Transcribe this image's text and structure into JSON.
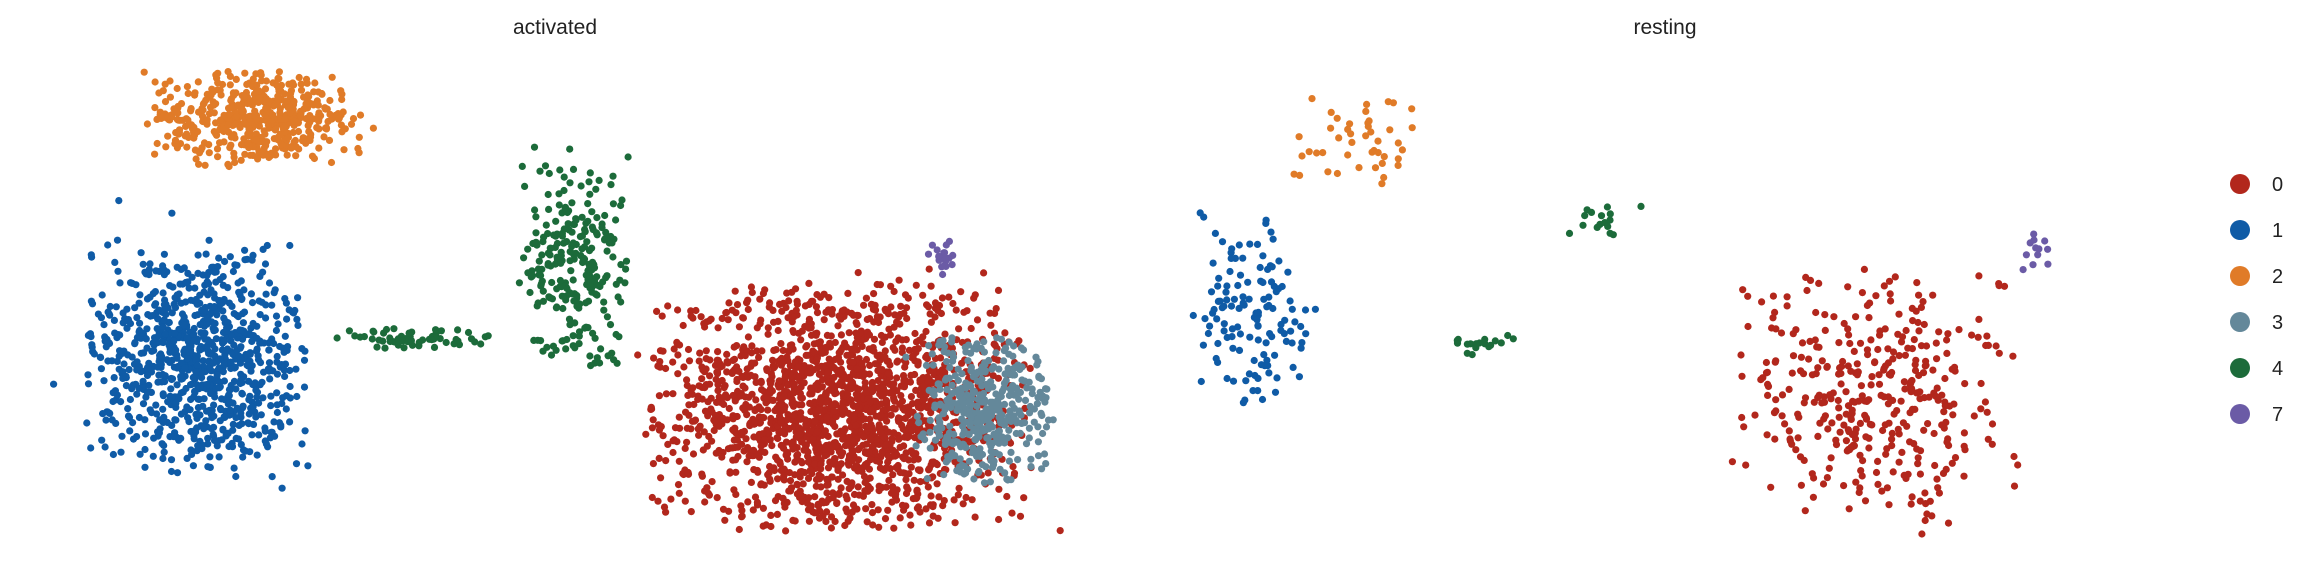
{
  "chart_data": {
    "type": "scatter",
    "title": "",
    "xlabel": "",
    "ylabel": "",
    "grid": false,
    "axes_visible": false,
    "legend_position": "right",
    "legend": [
      {
        "label": "0",
        "color": "#B2271C"
      },
      {
        "label": "1",
        "color": "#0F5BA6"
      },
      {
        "label": "2",
        "color": "#E07B28"
      },
      {
        "label": "3",
        "color": "#64889A"
      },
      {
        "label": "4",
        "color": "#1C6B3A"
      },
      {
        "label": "7",
        "color": "#6B5BA6"
      }
    ],
    "panels": [
      {
        "title": "activated",
        "xlim": [
          0,
          100
        ],
        "ylim": [
          0,
          100
        ],
        "clusters": [
          {
            "label": "1",
            "n": 900,
            "cx": 14,
            "cy": 62,
            "rx": 10,
            "ry": 22
          },
          {
            "label": "2",
            "n": 500,
            "cx": 20,
            "cy": 13,
            "rx": 10,
            "ry": 9
          },
          {
            "label": "4",
            "n": 260,
            "cx": 51,
            "cy": 43,
            "rx": 5,
            "ry": 22
          },
          {
            "label": "4",
            "n": 60,
            "cx": 35,
            "cy": 58,
            "rx": 7,
            "ry": 2
          },
          {
            "label": "0",
            "n": 1900,
            "cx": 77,
            "cy": 72,
            "rx": 17,
            "ry": 23
          },
          {
            "label": "3",
            "n": 420,
            "cx": 91,
            "cy": 72,
            "rx": 6,
            "ry": 14
          },
          {
            "label": "7",
            "n": 18,
            "cx": 87,
            "cy": 42,
            "rx": 1.5,
            "ry": 4
          }
        ]
      },
      {
        "title": "resting",
        "xlim": [
          0,
          100
        ],
        "ylim": [
          0,
          100
        ],
        "clusters": [
          {
            "label": "1",
            "n": 130,
            "cx": 9,
            "cy": 52,
            "rx": 6,
            "ry": 20
          },
          {
            "label": "2",
            "n": 45,
            "cx": 19,
            "cy": 18,
            "rx": 6,
            "ry": 9
          },
          {
            "label": "4",
            "n": 18,
            "cx": 31,
            "cy": 59,
            "rx": 4,
            "ry": 2
          },
          {
            "label": "4",
            "n": 16,
            "cx": 44,
            "cy": 34,
            "rx": 4,
            "ry": 3
          },
          {
            "label": "0",
            "n": 380,
            "cx": 71,
            "cy": 70,
            "rx": 13,
            "ry": 24
          },
          {
            "label": "7",
            "n": 12,
            "cx": 87,
            "cy": 40,
            "rx": 1.5,
            "ry": 4
          }
        ]
      }
    ]
  }
}
